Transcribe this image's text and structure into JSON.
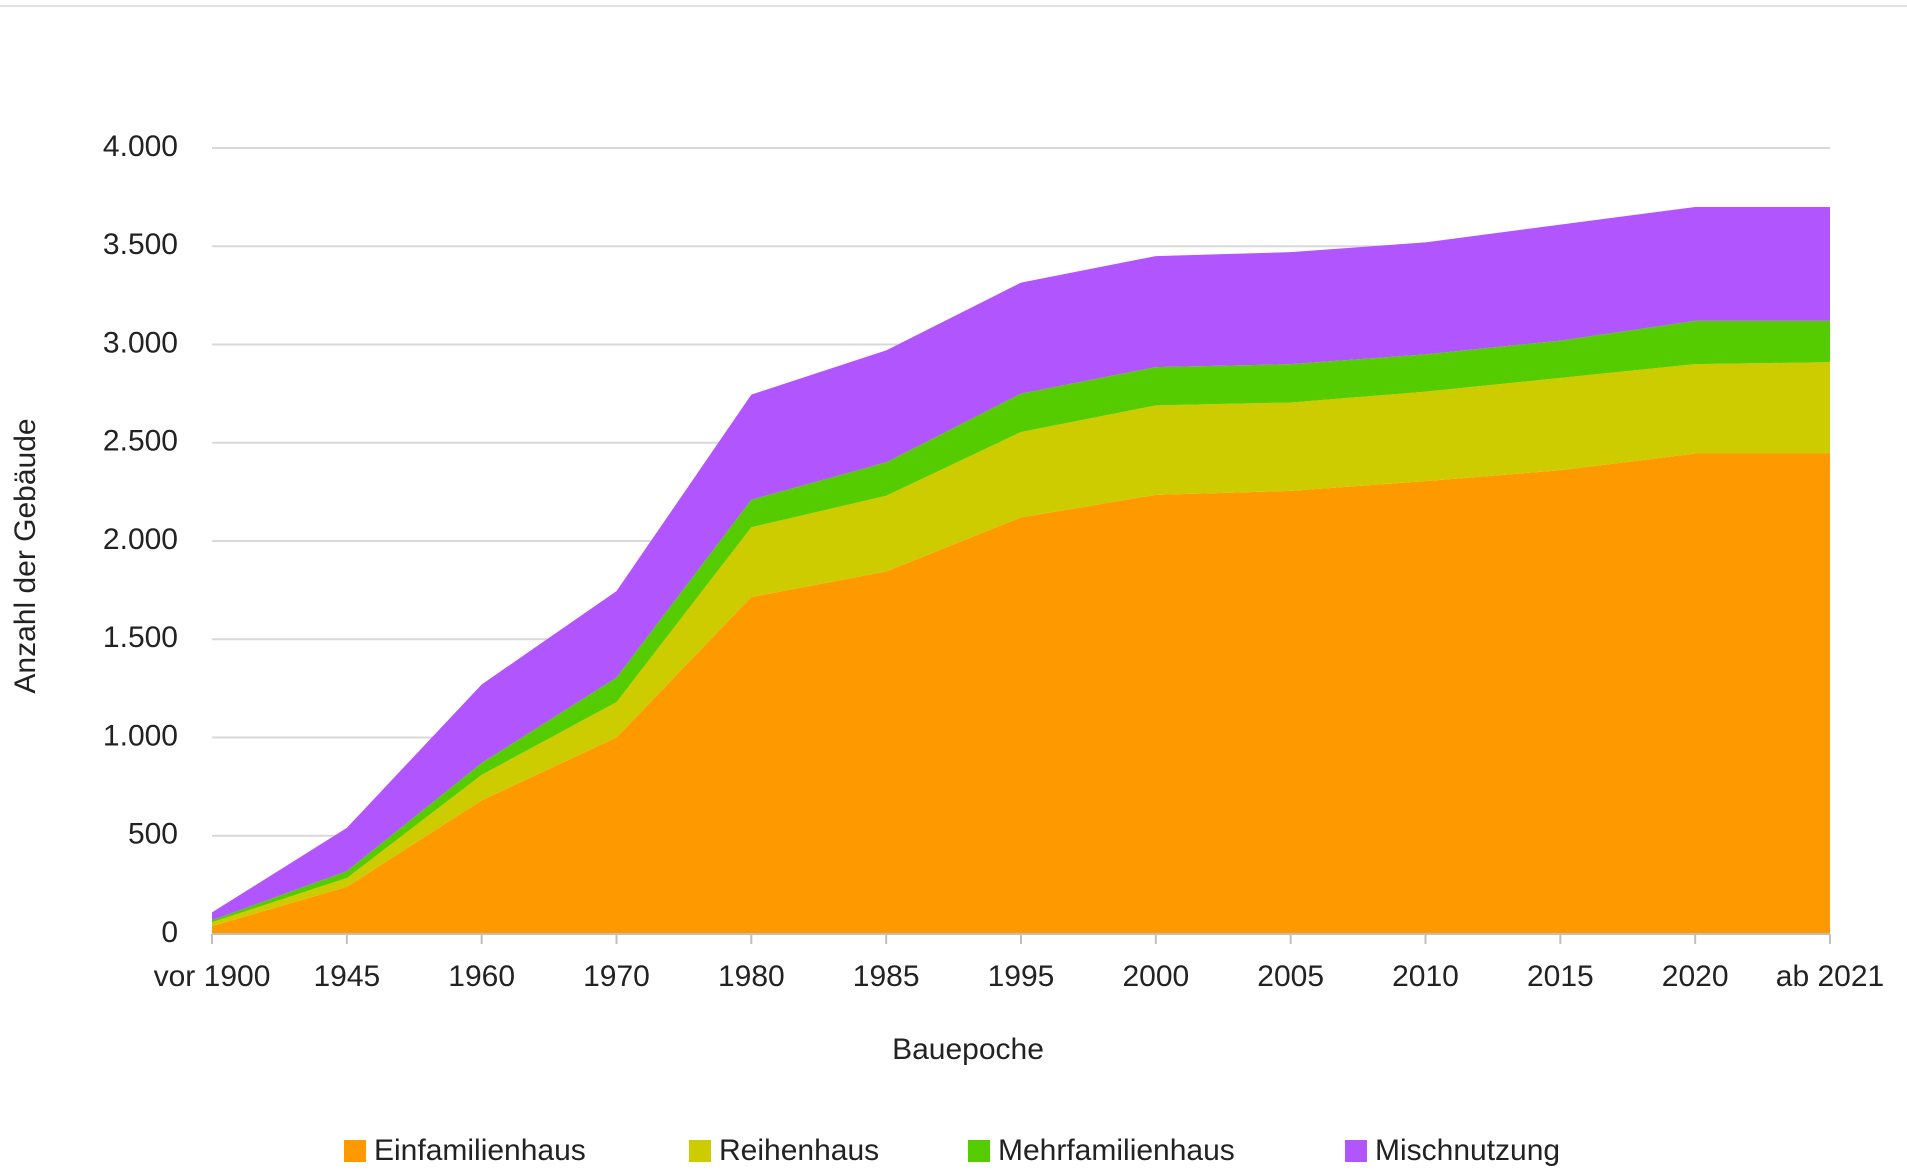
{
  "chart_data": {
    "type": "stacked_area",
    "xlabel": "Bauepoche",
    "ylabel": "Anzahl der Gebäude",
    "categories": [
      "vor 1900",
      "1945",
      "1960",
      "1970",
      "1980",
      "1985",
      "1995",
      "2000",
      "2005",
      "2010",
      "2015",
      "2020",
      "ab 2021"
    ],
    "series": [
      {
        "name": "Einfamilienhaus",
        "color": "#ff9900",
        "values": [
          40,
          240,
          680,
          1000,
          1715,
          1845,
          2120,
          2235,
          2255,
          2305,
          2360,
          2445,
          2445
        ]
      },
      {
        "name": "Reihenhaus",
        "color": "#cccc00",
        "values": [
          20,
          45,
          130,
          180,
          355,
          385,
          435,
          455,
          450,
          455,
          470,
          455,
          465
        ]
      },
      {
        "name": "Mehrfamilienhaus",
        "color": "#55cc00",
        "values": [
          10,
          35,
          60,
          125,
          140,
          170,
          195,
          195,
          195,
          190,
          190,
          220,
          210
        ]
      },
      {
        "name": "Mischnutzung",
        "color": "#b155ff",
        "values": [
          40,
          220,
          400,
          440,
          535,
          570,
          565,
          565,
          570,
          570,
          590,
          580,
          580
        ]
      }
    ],
    "ylim": [
      0,
      4000
    ],
    "yticks": [
      0,
      500,
      {
        "value": 1000,
        "label": "1.000"
      },
      {
        "value": 1500,
        "label": "1.500"
      },
      {
        "value": 2000,
        "label": "2.000"
      },
      {
        "value": 2500,
        "label": "2.500"
      },
      {
        "value": 3000,
        "label": "3.000"
      },
      {
        "value": 3500,
        "label": "3.500"
      },
      {
        "value": 4000,
        "label": "4.000"
      }
    ],
    "grid": true
  }
}
